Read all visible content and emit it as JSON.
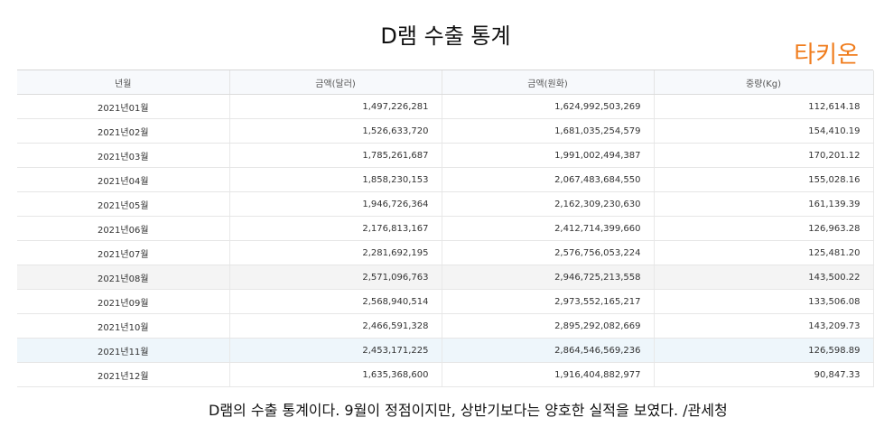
{
  "title": "D램 수출 통계",
  "brand": "타키온",
  "table": {
    "headers": [
      "년월",
      "금액(달러)",
      "금액(원화)",
      "중량(Kg)"
    ],
    "rows": [
      [
        "2021년01월",
        "1,497,226,281",
        "1,624,992,503,269",
        "112,614.18"
      ],
      [
        "2021년02월",
        "1,526,633,720",
        "1,681,035,254,579",
        "154,410.19"
      ],
      [
        "2021년03월",
        "1,785,261,687",
        "1,991,002,494,387",
        "170,201.12"
      ],
      [
        "2021년04월",
        "1,858,230,153",
        "2,067,483,684,550",
        "155,028.16"
      ],
      [
        "2021년05월",
        "1,946,726,364",
        "2,162,309,230,630",
        "161,139.39"
      ],
      [
        "2021년06월",
        "2,176,813,167",
        "2,412,714,399,660",
        "126,963.28"
      ],
      [
        "2021년07월",
        "2,281,692,195",
        "2,576,756,053,224",
        "125,481.20"
      ],
      [
        "2021년08월",
        "2,571,096,763",
        "2,946,725,213,558",
        "143,500.22"
      ],
      [
        "2021년09월",
        "2,568,940,514",
        "2,973,552,165,217",
        "133,506.08"
      ],
      [
        "2021년10월",
        "2,466,591,328",
        "2,895,292,082,669",
        "143,209.73"
      ],
      [
        "2021년11월",
        "2,453,171,225",
        "2,864,546,569,236",
        "126,598.89"
      ],
      [
        "2021년12월",
        "1,635,368,600",
        "1,916,404,882,977",
        "90,847.33"
      ]
    ]
  },
  "caption": "D램의 수출 통계이다. 9월이 정점이지만, 상반기보다는 양호한 실적을 보였다. /관세청",
  "colors": {
    "brand": "#f07c1c",
    "header_bg": "#f7f9fc",
    "highlight_gray": "#f4f4f4",
    "highlight_blue": "#eef6fb"
  }
}
